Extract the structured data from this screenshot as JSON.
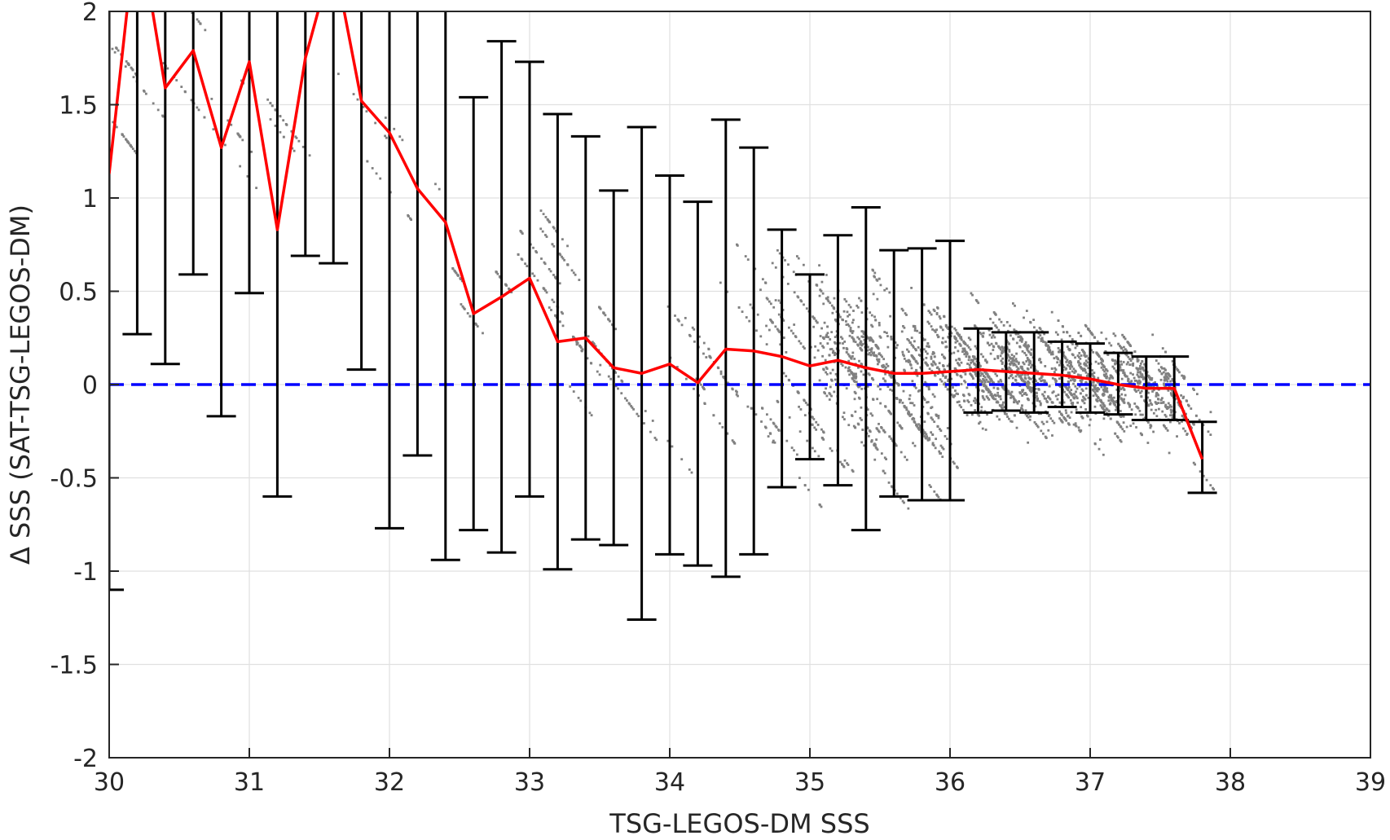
{
  "chart_data": {
    "type": "scatter",
    "title": "",
    "xlabel": "TSG-LEGOS-DM SSS",
    "ylabel": "Δ SSS (SAT-TSG-LEGOS-DM)",
    "xlim": [
      30,
      39
    ],
    "ylim": [
      -2,
      2
    ],
    "xticks": [
      "30",
      "31",
      "32",
      "33",
      "34",
      "35",
      "36",
      "37",
      "38",
      "39"
    ],
    "yticks": [
      "2",
      "1.5",
      "1",
      "0.5",
      "0",
      "-0.5",
      "-1",
      "-1.5",
      "-2"
    ],
    "grid": true,
    "zero_line": {
      "y": 0,
      "color": "#0000ff",
      "style": "dashed"
    },
    "colors": {
      "points": "#808080",
      "mean_line": "#ff0000",
      "errorbars": "#000000",
      "axes": "#262626",
      "grid": "#e0e0e0"
    },
    "binned_stats": {
      "x": [
        30.0,
        30.2,
        30.4,
        30.6,
        30.8,
        31.0,
        31.2,
        31.4,
        31.6,
        31.8,
        32.0,
        32.2,
        32.4,
        32.6,
        32.8,
        33.0,
        33.2,
        33.4,
        33.6,
        33.8,
        34.0,
        34.2,
        34.4,
        34.6,
        34.8,
        35.0,
        35.2,
        35.4,
        35.6,
        35.8,
        36.0,
        36.2,
        36.4,
        36.6,
        36.8,
        37.0,
        37.2,
        37.4,
        37.6,
        37.8
      ],
      "mean": [
        1.13,
        2.5,
        1.59,
        1.79,
        1.27,
        1.73,
        0.83,
        1.75,
        2.3,
        1.52,
        1.35,
        1.05,
        0.87,
        0.38,
        0.47,
        0.57,
        0.23,
        0.25,
        0.09,
        0.06,
        0.11,
        0.01,
        0.19,
        0.18,
        0.15,
        0.1,
        0.13,
        0.09,
        0.06,
        0.06,
        0.07,
        0.08,
        0.07,
        0.06,
        0.05,
        0.03,
        0.0,
        -0.02,
        -0.02,
        -0.4
      ],
      "lower": [
        -1.1,
        0.27,
        0.11,
        0.59,
        -0.17,
        0.49,
        -0.6,
        0.69,
        0.65,
        0.08,
        -0.77,
        -0.38,
        -0.94,
        -0.78,
        -0.9,
        -0.6,
        -0.99,
        -0.83,
        -0.86,
        -1.26,
        -0.91,
        -0.97,
        -1.03,
        -0.91,
        -0.55,
        -0.4,
        -0.54,
        -0.78,
        -0.6,
        -0.62,
        -0.62,
        -0.15,
        -0.14,
        -0.15,
        -0.12,
        -0.15,
        -0.16,
        -0.19,
        -0.19,
        -0.58
      ],
      "upper": [
        2.5,
        2.5,
        2.5,
        2.5,
        2.5,
        2.5,
        2.5,
        2.5,
        2.5,
        2.5,
        2.5,
        2.5,
        2.5,
        1.54,
        1.84,
        1.73,
        1.45,
        1.33,
        1.04,
        1.38,
        1.12,
        0.98,
        1.42,
        1.27,
        0.83,
        0.59,
        0.8,
        0.95,
        0.72,
        0.73,
        0.77,
        0.3,
        0.28,
        0.28,
        0.23,
        0.22,
        0.17,
        0.15,
        0.15,
        -0.2
      ]
    }
  }
}
